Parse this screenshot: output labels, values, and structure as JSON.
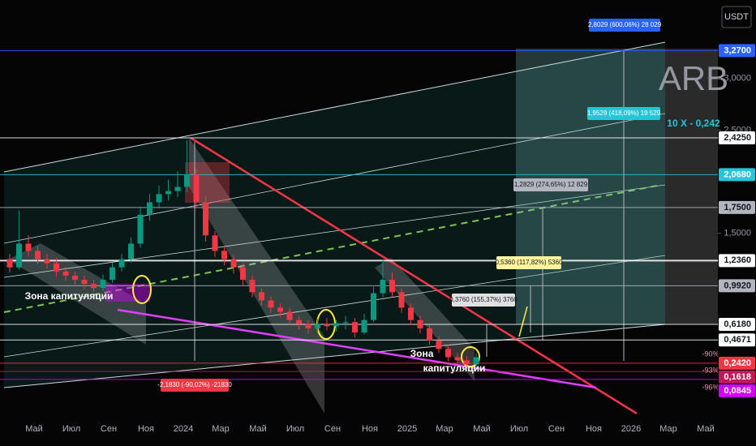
{
  "chart_data": {
    "type": "candlestick",
    "currency": "USDT",
    "symbol": "ARB",
    "target_note": "10 X - 0,242",
    "ylim": [
      -0.246,
      3.76
    ],
    "yticks": [
      {
        "value": 3,
        "label": "3,0000"
      },
      {
        "value": 2.5,
        "label": "2,5000"
      },
      {
        "value": 1.5,
        "label": "1,5000"
      }
    ],
    "xtick_labels": [
      "Май",
      "Июл",
      "Сен",
      "Ноя",
      "2024",
      "Мар",
      "Май",
      "Июл",
      "Сен",
      "Ноя",
      "2025",
      "Мар",
      "Май",
      "Июл",
      "Сен",
      "Ноя",
      "2026",
      "Мар",
      "Май"
    ],
    "up_color": "#089981",
    "down_color": "#f23645",
    "candles": [
      [
        1.25,
        1.3,
        1.12,
        1.17
      ],
      [
        1.17,
        1.72,
        1.15,
        1.4
      ],
      [
        1.4,
        1.48,
        1.28,
        1.33
      ],
      [
        1.33,
        1.38,
        1.2,
        1.25
      ],
      [
        1.25,
        1.3,
        1.16,
        1.21
      ],
      [
        1.21,
        1.26,
        1.08,
        1.13
      ],
      [
        1.13,
        1.18,
        1.04,
        1.09
      ],
      [
        1.09,
        1.13,
        1.0,
        1.05
      ],
      [
        1.05,
        1.09,
        0.96,
        1.01
      ],
      [
        1.01,
        1.05,
        0.93,
        0.97
      ],
      [
        0.97,
        1.1,
        0.94,
        1.05
      ],
      [
        1.05,
        1.22,
        1.02,
        1.17
      ],
      [
        1.17,
        1.3,
        1.13,
        1.25
      ],
      [
        1.25,
        1.46,
        1.22,
        1.4
      ],
      [
        1.4,
        1.76,
        1.36,
        1.68
      ],
      [
        1.68,
        1.88,
        1.62,
        1.8
      ],
      [
        1.8,
        1.96,
        1.74,
        1.88
      ],
      [
        1.88,
        2.02,
        1.82,
        1.91
      ],
      [
        1.91,
        2.1,
        1.85,
        1.95
      ],
      [
        1.95,
        2.4,
        1.9,
        2.07
      ],
      [
        2.07,
        2.12,
        1.74,
        1.8
      ],
      [
        1.8,
        1.86,
        1.42,
        1.48
      ],
      [
        1.48,
        1.52,
        1.27,
        1.33
      ],
      [
        1.33,
        1.38,
        1.19,
        1.25
      ],
      [
        1.25,
        1.29,
        1.11,
        1.17
      ],
      [
        1.17,
        1.21,
        0.99,
        1.05
      ],
      [
        1.05,
        1.09,
        0.88,
        0.93
      ],
      [
        0.93,
        0.97,
        0.8,
        0.85
      ],
      [
        0.85,
        0.89,
        0.73,
        0.78
      ],
      [
        0.78,
        0.82,
        0.69,
        0.74
      ],
      [
        0.74,
        0.78,
        0.61,
        0.66
      ],
      [
        0.66,
        0.7,
        0.57,
        0.62
      ],
      [
        0.62,
        0.66,
        0.53,
        0.58
      ],
      [
        0.58,
        0.67,
        0.55,
        0.62
      ],
      [
        0.62,
        0.68,
        0.56,
        0.6
      ],
      [
        0.6,
        0.66,
        0.55,
        0.63
      ],
      [
        0.63,
        0.7,
        0.57,
        0.64
      ],
      [
        0.64,
        0.68,
        0.49,
        0.54
      ],
      [
        0.54,
        0.72,
        0.52,
        0.66
      ],
      [
        0.66,
        0.98,
        0.64,
        0.92
      ],
      [
        0.92,
        1.24,
        0.88,
        1.05
      ],
      [
        1.05,
        1.12,
        0.88,
        0.93
      ],
      [
        0.93,
        0.97,
        0.73,
        0.78
      ],
      [
        0.78,
        0.82,
        0.61,
        0.66
      ],
      [
        0.66,
        0.7,
        0.53,
        0.58
      ],
      [
        0.58,
        0.61,
        0.42,
        0.46
      ],
      [
        0.46,
        0.5,
        0.34,
        0.38
      ],
      [
        0.38,
        0.42,
        0.26,
        0.3
      ],
      [
        0.3,
        0.34,
        0.23,
        0.27
      ],
      [
        0.27,
        0.31,
        0.2,
        0.23
      ],
      [
        0.23,
        0.34,
        0.21,
        0.3
      ]
    ],
    "price_levels": [
      {
        "value": 3.27,
        "label": "3,2700",
        "color": "#2962ff"
      },
      {
        "value": 2.425,
        "label": "2,4250",
        "color": "#ffffff"
      },
      {
        "value": 2.068,
        "label": "2,0680",
        "color": "#26c6da"
      },
      {
        "value": 1.75,
        "label": "1,7500",
        "color": "#b2b5be"
      },
      {
        "value": 1.236,
        "label": "1,2360",
        "color": "#ffffff"
      },
      {
        "value": 0.992,
        "label": "0,9920",
        "color": "#b2b5be"
      },
      {
        "value": 0.618,
        "label": "0,6180",
        "color": "#ffffff"
      },
      {
        "value": 0.4671,
        "label": "0,4671",
        "color": "#ffffff"
      },
      {
        "value": 0.242,
        "label": "0,2420",
        "color": "#f23645"
      },
      {
        "value": 0.1618,
        "label": "0,1618",
        "color": "#c2185b"
      },
      {
        "value": 0.0845,
        "label": "0,0845",
        "color": "#d500f9"
      }
    ],
    "annotations": [
      "Зона капитуляции",
      "Зона",
      "капитуляции",
      "2,8029 (600,06%) 28 029",
      "1,9529 (418,09%) 19 529",
      "1,2829 (274,65%) 12 829",
      "0,5360 (117,82%) 5360",
      "0,3760 (155,37%) 3760",
      "-2,1830 (-90,02%) -21830",
      "-90%",
      "-93%",
      "-96%"
    ]
  }
}
